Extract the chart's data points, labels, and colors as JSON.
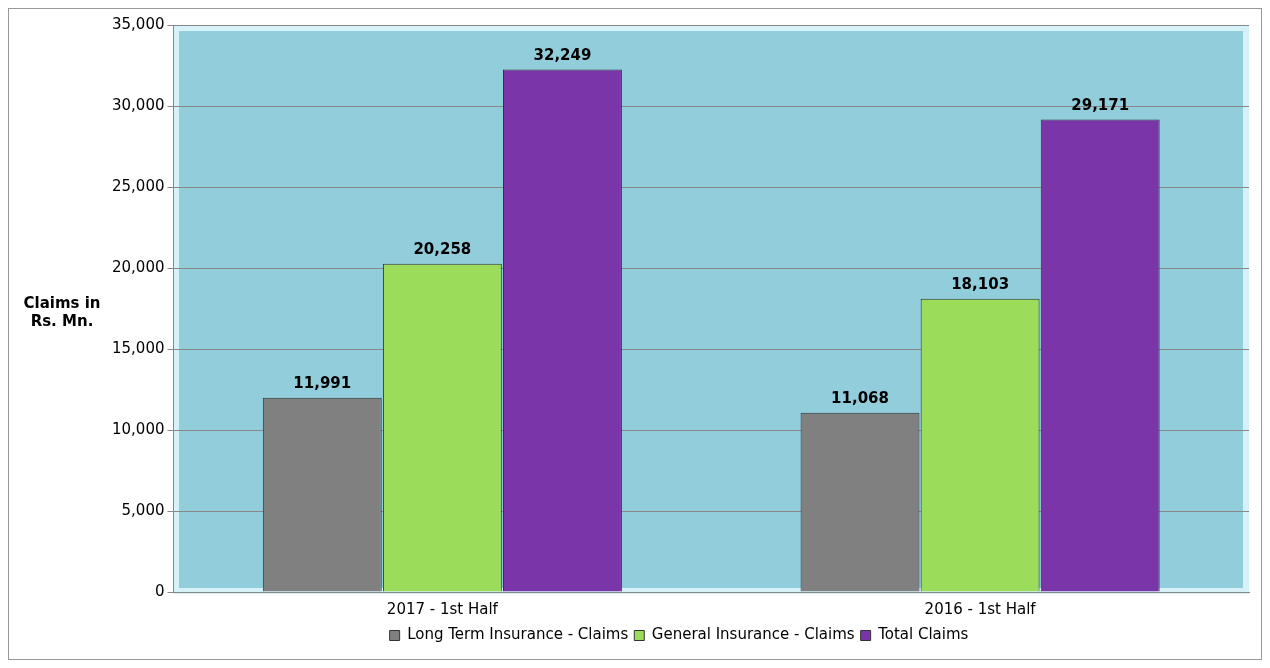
{
  "chart_data": {
    "type": "bar",
    "ylabel": "Claims in Rs. Mn.",
    "categories": [
      "2017 - 1st Half",
      "2016 - 1st Half"
    ],
    "series": [
      {
        "name": "Long Term Insurance - Claims",
        "color": "#808080",
        "values": [
          11991,
          11068
        ],
        "value_labels": [
          "11,991",
          "11,068"
        ]
      },
      {
        "name": "General Insurance - Claims",
        "color": "#9bdc5a",
        "values": [
          20258,
          18103
        ],
        "value_labels": [
          "20,258",
          "18,103"
        ]
      },
      {
        "name": "Total Claims",
        "color": "#7a35a8",
        "values": [
          32249,
          29171
        ],
        "value_labels": [
          "32,249",
          "29,171"
        ]
      }
    ],
    "ylim": [
      0,
      35000
    ],
    "yticks": [
      {
        "value": 0,
        "label": "0"
      },
      {
        "value": 5000,
        "label": "5,000"
      },
      {
        "value": 10000,
        "label": "10,000"
      },
      {
        "value": 15000,
        "label": "15,000"
      },
      {
        "value": 20000,
        "label": "20,000"
      },
      {
        "value": 25000,
        "label": "25,000"
      },
      {
        "value": 30000,
        "label": "30,000"
      },
      {
        "value": 35000,
        "label": "35,000"
      }
    ],
    "grid": "y",
    "legend": "bottom"
  }
}
